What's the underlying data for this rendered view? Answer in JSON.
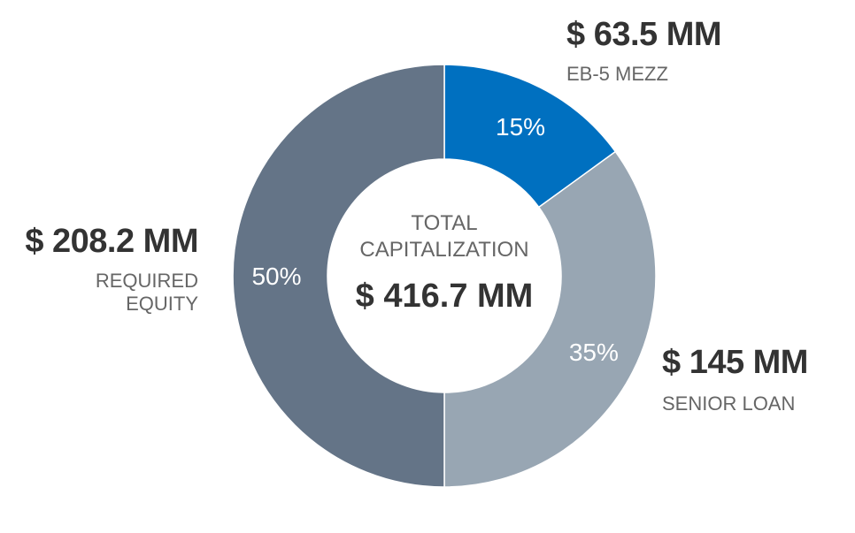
{
  "chart_data": {
    "type": "pie",
    "variant": "donut",
    "center": {
      "title_line1": "TOTAL",
      "title_line2": "CAPITALIZATION",
      "total": "$ 416.7 MM"
    },
    "slices": [
      {
        "key": "mezz",
        "label": "EB-5 MEZZ",
        "amount": "$ 63.5 MM",
        "value": 63.5,
        "percent": 15,
        "percent_label": "15%",
        "color": "#0070c0"
      },
      {
        "key": "senior",
        "label": "SENIOR LOAN",
        "amount": "$ 145 MM",
        "value": 145,
        "percent": 35,
        "percent_label": "35%",
        "color": "#98a6b3"
      },
      {
        "key": "equity",
        "label_line1": "REQUIRED",
        "label_line2": "EQUITY",
        "amount": "$ 208.2 MM",
        "value": 208.2,
        "percent": 50,
        "percent_label": "50%",
        "color": "#647487"
      }
    ]
  }
}
